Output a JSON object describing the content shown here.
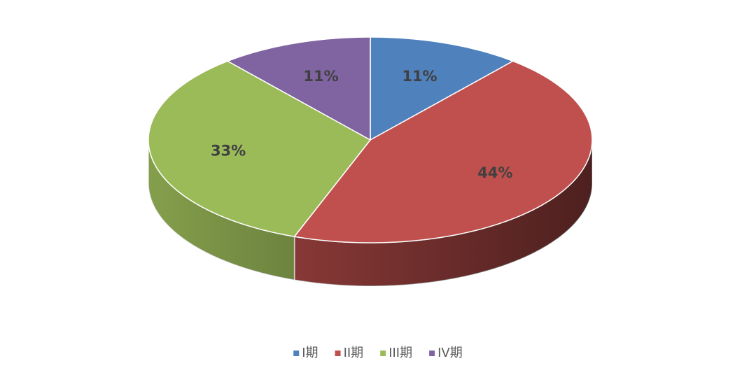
{
  "chart_data": {
    "type": "pie",
    "categories": [
      "I期",
      "II期",
      "III期",
      "IV期"
    ],
    "values": [
      11,
      44,
      33,
      11
    ],
    "value_labels": [
      "11%",
      "44%",
      "33%",
      "11%"
    ],
    "colors": [
      "#4f81bd",
      "#c0504d",
      "#9bbb59",
      "#8064a2"
    ],
    "legend": "bottom"
  }
}
